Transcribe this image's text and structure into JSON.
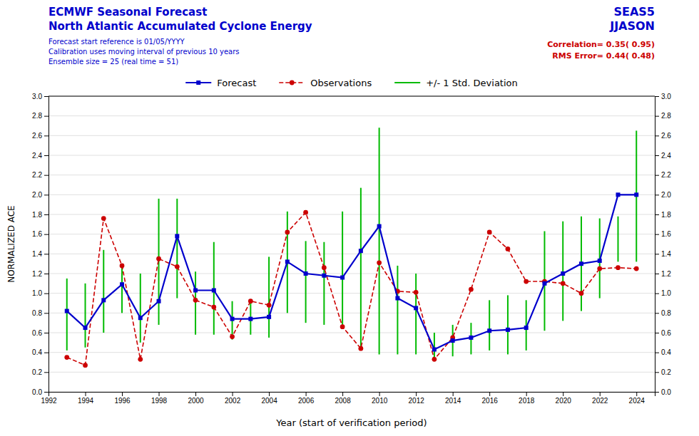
{
  "chart_data": {
    "type": "line",
    "title": {
      "text": [
        "ECMWF Seasonal Forecast",
        "North Atlantic Accumulated Cyclone Energy"
      ],
      "color": "#0000cc"
    },
    "subtitle": {
      "text": [
        "Forecast start reference is 01/05/YYYY",
        "Calibration uses moving interval of previous 10 years",
        "Ensemble size = 25   (real time = 51)"
      ],
      "color": "#0000cc"
    },
    "annotations": [
      {
        "text": "SEAS5",
        "color": "#0000cc"
      },
      {
        "text": "JJASON",
        "color": "#0000cc"
      },
      {
        "text": "Correlation= 0.35( 0.95)",
        "color": "#cc0000"
      },
      {
        "text": "RMS Error= 0.44( 0.48)",
        "color": "#cc0000"
      }
    ],
    "xlabel": "Year (start of verification period)",
    "ylabel": "NORMALIZED ACE",
    "x": [
      1993,
      1994,
      1995,
      1996,
      1997,
      1998,
      1999,
      2000,
      2001,
      2002,
      2003,
      2004,
      2005,
      2006,
      2007,
      2008,
      2009,
      2010,
      2011,
      2012,
      2013,
      2014,
      2015,
      2016,
      2017,
      2018,
      2019,
      2020,
      2021,
      2022,
      2023,
      2024
    ],
    "series": [
      {
        "name": "Forecast",
        "color": "#0000cc",
        "marker": "square",
        "line_style": "solid",
        "values": [
          0.82,
          0.65,
          0.93,
          1.09,
          0.75,
          0.92,
          1.58,
          1.03,
          1.03,
          0.74,
          0.74,
          0.76,
          1.32,
          1.2,
          1.18,
          1.16,
          1.43,
          1.68,
          0.95,
          0.85,
          0.43,
          0.52,
          0.55,
          0.62,
          0.63,
          0.65,
          1.1,
          1.2,
          1.3,
          1.33,
          2.0,
          2.0
        ]
      },
      {
        "name": "Observations",
        "color": "#cc0000",
        "marker": "circle",
        "line_style": "dashed",
        "values": [
          0.35,
          0.27,
          1.76,
          1.28,
          0.33,
          1.35,
          1.27,
          0.93,
          0.86,
          0.56,
          0.92,
          0.88,
          1.62,
          1.82,
          1.26,
          0.66,
          0.44,
          1.31,
          1.02,
          1.01,
          0.33,
          0.55,
          1.04,
          1.62,
          1.45,
          1.12,
          1.12,
          1.1,
          1.0,
          1.25,
          1.26,
          1.25
        ]
      },
      {
        "name": "+/- 1 Std. Deviation",
        "color": "#00bb00",
        "type": "range",
        "low": [
          0.42,
          0.45,
          0.6,
          0.8,
          0.5,
          0.68,
          0.95,
          0.58,
          0.58,
          0.53,
          0.58,
          0.55,
          0.8,
          0.7,
          0.68,
          0.68,
          0.43,
          0.38,
          0.38,
          0.38,
          0.32,
          0.36,
          0.38,
          0.42,
          0.38,
          0.42,
          0.62,
          0.72,
          0.82,
          0.95,
          1.32,
          1.32
        ],
        "high": [
          1.15,
          1.1,
          1.44,
          1.26,
          1.2,
          1.96,
          1.96,
          1.22,
          1.52,
          0.92,
          0.9,
          1.37,
          1.83,
          1.53,
          1.52,
          1.83,
          2.07,
          2.68,
          1.28,
          1.2,
          0.6,
          0.68,
          0.7,
          0.93,
          0.98,
          0.93,
          1.63,
          1.73,
          1.78,
          1.76,
          1.78,
          2.65
        ]
      }
    ],
    "xlim": [
      1992,
      2025
    ],
    "xticks": [
      1992,
      1994,
      1996,
      1998,
      2000,
      2002,
      2004,
      2006,
      2008,
      2010,
      2012,
      2014,
      2016,
      2018,
      2020,
      2022,
      2024
    ],
    "ylim": [
      0,
      3
    ],
    "yticks": [
      {
        "value": 0,
        "label": "0.0"
      },
      0.2,
      0.4,
      0.6,
      0.8,
      {
        "value": 1,
        "label": "1.0"
      },
      1.2,
      1.4,
      1.6,
      1.8,
      {
        "value": 2,
        "label": "2.0"
      },
      2.2,
      2.4,
      2.6,
      2.8,
      {
        "value": 3,
        "label": "3.0"
      }
    ],
    "y2lim": [
      0,
      3
    ],
    "y2ticks": [
      {
        "value": 0,
        "label": "0.0"
      },
      0.2,
      0.4,
      0.6,
      0.8,
      {
        "value": 1,
        "label": "1.0"
      },
      1.2,
      1.4,
      1.6,
      1.8,
      {
        "value": 2,
        "label": "2.0"
      },
      2.2,
      2.4,
      2.6,
      2.8,
      {
        "value": 3,
        "label": "3.0"
      }
    ],
    "grid": "y",
    "legend": "top"
  }
}
